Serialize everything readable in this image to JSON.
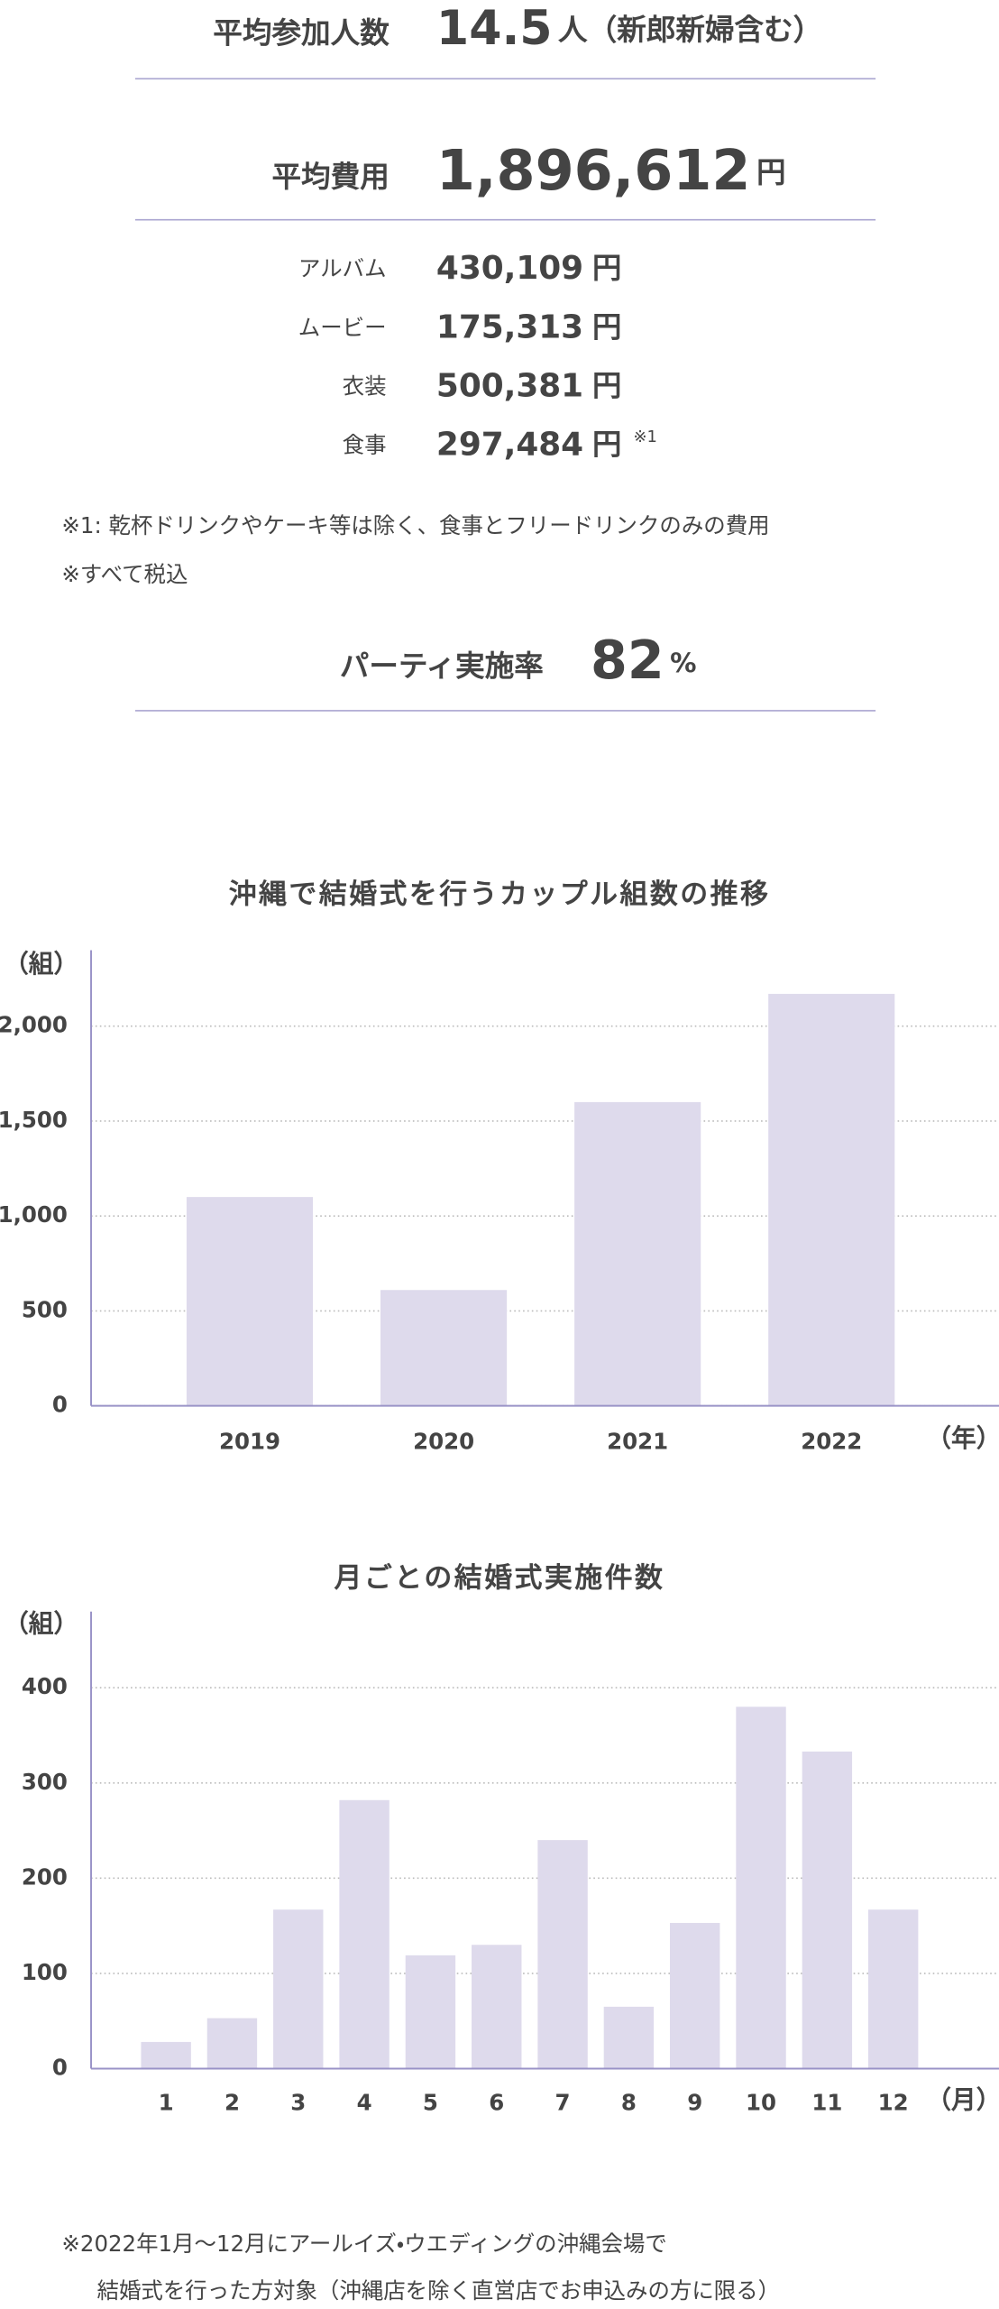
{
  "attendance": {
    "label": "平均参加人数",
    "value": "14.5",
    "unit": "人（新郎新婦含む）"
  },
  "cost": {
    "label": "平均費用",
    "value": "1,896,612",
    "unit": "円",
    "items": [
      {
        "label": "アルバム",
        "value": "430,109",
        "unit": "円"
      },
      {
        "label": "ムービー",
        "value": "175,313",
        "unit": "円"
      },
      {
        "label": "衣装",
        "value": "500,381",
        "unit": "円"
      },
      {
        "label": "食事",
        "value": "297,484",
        "unit": "円",
        "note": "※1"
      }
    ]
  },
  "notes": [
    "※1: 乾杯ドリンクやケーキ等は除く、食事とフリードリンクのみの費用",
    "※すべて税込"
  ],
  "party": {
    "label": "パーティ実施率",
    "value": "82",
    "unit": "%"
  },
  "chart_data": [
    {
      "type": "bar",
      "title": "沖縄で結婚式を行うカップル組数の推移",
      "y_unit": "（組）",
      "x_unit": "（年）",
      "categories": [
        "2019",
        "2020",
        "2021",
        "2022"
      ],
      "values": [
        1100,
        610,
        1600,
        2170
      ],
      "color": "#dedaec",
      "ylim": [
        0,
        2400
      ],
      "yticks": [
        0,
        500,
        {
          "value": 1000,
          "label": "1,000"
        },
        {
          "value": 1500,
          "label": "1,500"
        },
        {
          "value": 2000,
          "label": "2,000"
        }
      ],
      "grid": true
    },
    {
      "type": "bar",
      "title": "月ごとの結婚式実施件数",
      "y_unit": "（組）",
      "x_unit": "（月）",
      "categories": [
        "1",
        "2",
        "3",
        "4",
        "5",
        "6",
        "7",
        "8",
        "9",
        "10",
        "11",
        "12"
      ],
      "values": [
        28,
        53,
        167,
        282,
        119,
        130,
        240,
        65,
        153,
        380,
        333,
        167
      ],
      "color": "#dedaec",
      "ylim": [
        0,
        480
      ],
      "yticks": [
        0,
        100,
        200,
        300,
        400
      ],
      "grid": true
    }
  ],
  "footnote": [
    "※2022年1月～12月にアールイズ・ウエディングの沖縄会場で",
    "結婚式を行った方対象（沖縄店を除く直営店でお申込みの方に限る）"
  ]
}
